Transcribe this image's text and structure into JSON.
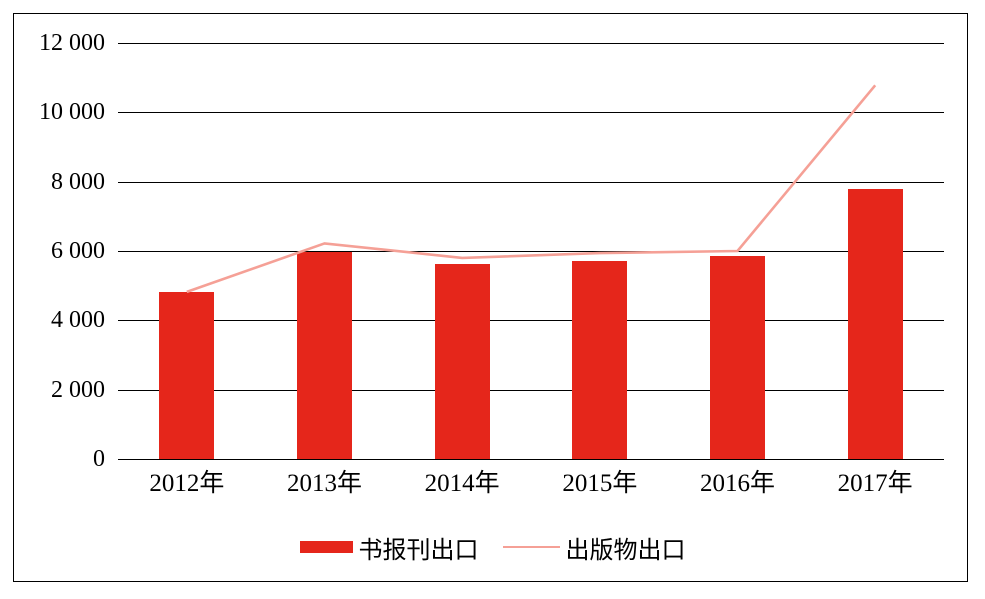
{
  "chart_data": {
    "type": "bar",
    "categories": [
      "2012年",
      "2013年",
      "2014年",
      "2015年",
      "2016年",
      "2017年"
    ],
    "series": [
      {
        "name": "书报刊出口",
        "type": "bar",
        "color": "#e5261b",
        "values": [
          4810,
          5970,
          5620,
          5700,
          5870,
          7790
        ]
      },
      {
        "name": "出版物出口",
        "type": "line",
        "color": "#f5a096",
        "values": [
          4820,
          6220,
          5800,
          5940,
          6000,
          10780
        ]
      }
    ],
    "title": "",
    "xlabel": "",
    "ylabel": "",
    "ylim": [
      0,
      12000
    ],
    "ytick_interval": 2000,
    "ytick_labels": [
      "0",
      "2 000",
      "4 000",
      "6 000",
      "8 000",
      "10 000",
      "12 000"
    ],
    "grid": true,
    "grid_color": "#000000",
    "border_color": "#000000",
    "background_color": "#ffffff",
    "legend_position": "bottom"
  }
}
